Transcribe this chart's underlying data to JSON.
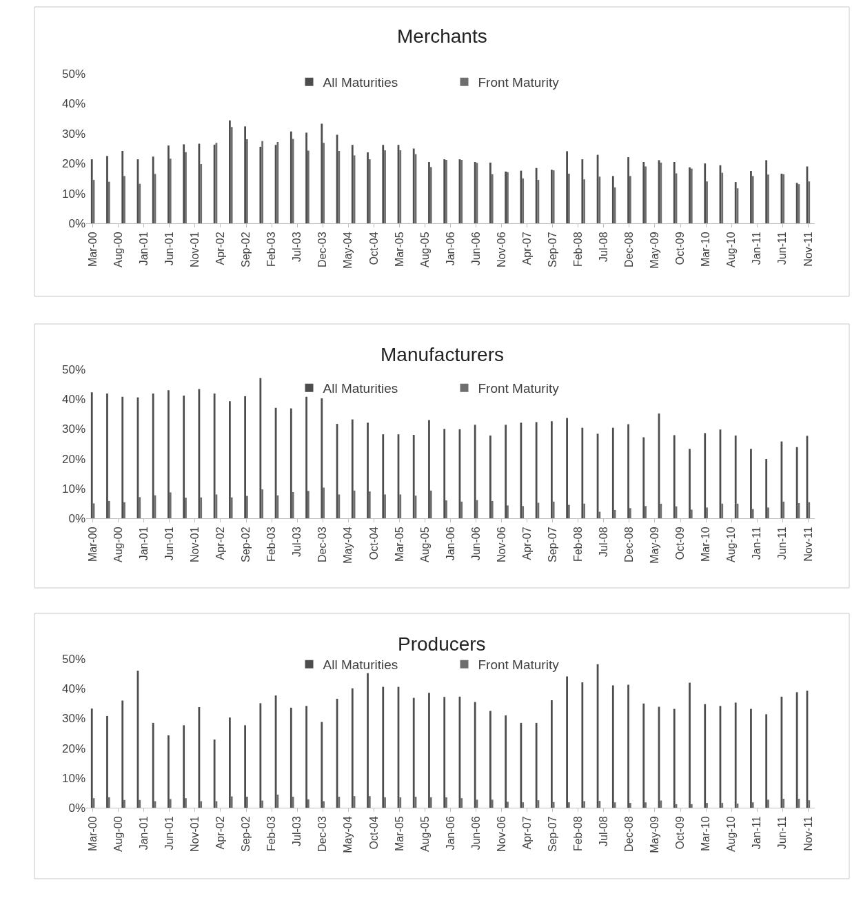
{
  "chart_data": [
    {
      "type": "bar",
      "title": "Merchants",
      "legend": "top",
      "grid": false,
      "categories": [
        "Mar-00",
        null,
        null,
        null,
        null,
        "Aug-00",
        null,
        null,
        null,
        null,
        "Jan-01",
        null,
        null,
        null,
        null,
        "Jun-01",
        null,
        null,
        null,
        null,
        "Nov-01",
        null,
        null,
        null,
        null,
        "Apr-02",
        null,
        null,
        null,
        null,
        "Sep-02",
        null,
        null,
        null,
        null,
        "Feb-03",
        null,
        null,
        null,
        null,
        "Jul-03",
        null,
        null,
        null,
        null,
        "Dec-03",
        null,
        null,
        null,
        null,
        "May-04",
        null,
        null,
        null,
        null,
        "Oct-04",
        null,
        null,
        null,
        null,
        "Mar-05",
        null,
        null,
        null,
        null,
        "Aug-05",
        null,
        null,
        null,
        null,
        "Jan-06",
        null,
        null,
        null,
        null,
        "Jun-06",
        null,
        null,
        null,
        null,
        "Nov-06",
        null,
        null,
        null,
        null,
        "Apr-07",
        null,
        null,
        null,
        null,
        "Sep-07",
        null,
        null,
        null,
        null,
        "Feb-08",
        null,
        null,
        null,
        null,
        "Jul-08",
        null,
        null,
        null,
        null,
        "Dec-08",
        null,
        null,
        null,
        null,
        "May-09",
        null,
        null,
        null,
        null,
        "Oct-09",
        null,
        null,
        null,
        null,
        "Mar-10",
        null,
        null,
        null,
        null,
        "Aug-10",
        null,
        null,
        null,
        null,
        "Jan-11",
        null,
        null,
        null,
        null,
        "Jun-11",
        null,
        null,
        null,
        null,
        "Nov-11"
      ],
      "ylim": [
        0,
        50
      ],
      "yticks": [
        {
          "value": 0,
          "label": "0%"
        },
        {
          "value": 10,
          "label": "10%"
        },
        {
          "value": 20,
          "label": "20%"
        },
        {
          "value": 30,
          "label": "30%"
        },
        {
          "value": 40,
          "label": "40%"
        },
        {
          "value": 50,
          "label": "50%"
        }
      ],
      "series": [
        {
          "name": "All Maturities",
          "color": "#4d4d4d",
          "values": [
            21.4,
            null,
            null,
            22.5,
            null,
            null,
            24.2,
            null,
            null,
            21.4,
            null,
            null,
            22.3,
            null,
            null,
            26.0,
            null,
            null,
            26.4,
            null,
            null,
            26.6,
            null,
            null,
            26.3,
            null,
            null,
            34.4,
            null,
            null,
            32.4,
            null,
            null,
            25.6,
            null,
            null,
            26.2,
            null,
            null,
            30.7,
            null,
            null,
            30.3,
            null,
            null,
            33.3,
            null,
            null,
            29.6,
            null,
            null,
            26.2,
            null,
            null,
            23.7,
            null,
            null,
            26.2,
            null,
            null,
            26.2,
            null,
            null,
            25.0,
            null,
            null,
            20.5,
            null,
            null,
            21.4,
            null,
            null,
            21.4,
            null,
            null,
            20.5,
            null,
            null,
            20.3,
            null,
            null,
            17.3,
            null,
            null,
            17.6,
            null,
            null,
            18.5,
            null,
            null,
            17.9,
            null,
            null,
            24.1,
            null,
            null,
            21.4,
            null,
            null,
            22.9,
            null,
            null,
            15.8,
            null,
            null,
            22.1,
            null,
            null,
            20.5,
            null,
            null,
            21.1,
            null,
            null,
            20.5,
            null,
            null,
            18.7,
            null,
            null,
            20.0,
            null,
            null,
            19.4,
            null,
            null,
            13.8,
            null,
            null,
            17.5,
            null,
            null,
            21.1,
            null,
            null,
            16.6,
            null,
            null,
            13.5,
            null,
            19.0
          ]
        },
        {
          "name": "Front Maturity",
          "color": "#6e6e6e",
          "values": [
            14.5,
            null,
            null,
            13.9,
            null,
            null,
            15.8,
            null,
            null,
            13.2,
            null,
            null,
            16.5,
            null,
            null,
            21.6,
            null,
            null,
            23.8,
            null,
            null,
            19.8,
            null,
            null,
            26.9,
            null,
            null,
            32.2,
            null,
            null,
            28.1,
            null,
            null,
            27.5,
            null,
            null,
            27.2,
            null,
            null,
            28.2,
            null,
            null,
            24.3,
            null,
            null,
            26.9,
            null,
            null,
            24.2,
            null,
            null,
            22.7,
            null,
            null,
            21.4,
            null,
            null,
            24.4,
            null,
            null,
            24.4,
            null,
            null,
            23.1,
            null,
            null,
            18.8,
            null,
            null,
            21.2,
            null,
            null,
            21.2,
            null,
            null,
            20.2,
            null,
            null,
            16.4,
            null,
            null,
            17.1,
            null,
            null,
            15.0,
            null,
            null,
            14.5,
            null,
            null,
            17.7,
            null,
            null,
            16.6,
            null,
            null,
            14.7,
            null,
            null,
            15.6,
            null,
            null,
            12.0,
            null,
            null,
            15.8,
            null,
            null,
            19.0,
            null,
            null,
            20.3,
            null,
            null,
            16.7,
            null,
            null,
            18.3,
            null,
            null,
            14.0,
            null,
            null,
            16.9,
            null,
            null,
            11.7,
            null,
            null,
            15.8,
            null,
            null,
            16.3,
            null,
            null,
            16.4,
            null,
            null,
            13.1,
            null,
            14.0
          ]
        }
      ]
    },
    {
      "type": "bar",
      "title": "Manufacturers",
      "legend": "top",
      "grid": false,
      "categories": [
        "Mar-00",
        null,
        null,
        null,
        null,
        "Aug-00",
        null,
        null,
        null,
        null,
        "Jan-01",
        null,
        null,
        null,
        null,
        "Jun-01",
        null,
        null,
        null,
        null,
        "Nov-01",
        null,
        null,
        null,
        null,
        "Apr-02",
        null,
        null,
        null,
        null,
        "Sep-02",
        null,
        null,
        null,
        null,
        "Feb-03",
        null,
        null,
        null,
        null,
        "Jul-03",
        null,
        null,
        null,
        null,
        "Dec-03",
        null,
        null,
        null,
        null,
        "May-04",
        null,
        null,
        null,
        null,
        "Oct-04",
        null,
        null,
        null,
        null,
        "Mar-05",
        null,
        null,
        null,
        null,
        "Aug-05",
        null,
        null,
        null,
        null,
        "Jan-06",
        null,
        null,
        null,
        null,
        "Jun-06",
        null,
        null,
        null,
        null,
        "Nov-06",
        null,
        null,
        null,
        null,
        "Apr-07",
        null,
        null,
        null,
        null,
        "Sep-07",
        null,
        null,
        null,
        null,
        "Feb-08",
        null,
        null,
        null,
        null,
        "Jul-08",
        null,
        null,
        null,
        null,
        "Dec-08",
        null,
        null,
        null,
        null,
        "May-09",
        null,
        null,
        null,
        null,
        "Oct-09",
        null,
        null,
        null,
        null,
        "Mar-10",
        null,
        null,
        null,
        null,
        "Aug-10",
        null,
        null,
        null,
        null,
        "Jan-11",
        null,
        null,
        null,
        null,
        "Jun-11",
        null,
        null,
        null,
        null,
        "Nov-11"
      ],
      "ylim": [
        0,
        50
      ],
      "yticks": [
        {
          "value": 0,
          "label": "0%"
        },
        {
          "value": 10,
          "label": "10%"
        },
        {
          "value": 20,
          "label": "20%"
        },
        {
          "value": 30,
          "label": "30%"
        },
        {
          "value": 40,
          "label": "40%"
        },
        {
          "value": 50,
          "label": "50%"
        }
      ],
      "series": [
        {
          "name": "All Maturities",
          "color": "#4d4d4d",
          "values": [
            42.3,
            null,
            null,
            41.9,
            null,
            null,
            40.8,
            null,
            null,
            40.6,
            null,
            null,
            41.9,
            null,
            null,
            43.0,
            null,
            null,
            41.2,
            null,
            null,
            43.4,
            null,
            null,
            41.9,
            null,
            null,
            39.3,
            null,
            null,
            41.0,
            null,
            null,
            47.1,
            null,
            null,
            37.1,
            null,
            null,
            36.9,
            null,
            null,
            40.8,
            null,
            null,
            40.3,
            null,
            null,
            31.7,
            null,
            null,
            33.2,
            null,
            null,
            32.1,
            null,
            null,
            28.2,
            null,
            null,
            28.2,
            null,
            null,
            28.0,
            null,
            null,
            33.0,
            null,
            null,
            30.0,
            null,
            null,
            29.9,
            null,
            null,
            31.4,
            null,
            null,
            27.8,
            null,
            null,
            31.4,
            null,
            null,
            32.1,
            null,
            null,
            32.3,
            null,
            null,
            32.6,
            null,
            null,
            33.7,
            null,
            null,
            30.4,
            null,
            null,
            28.4,
            null,
            null,
            30.4,
            null,
            null,
            31.6,
            null,
            null,
            27.2,
            null,
            null,
            35.2,
            null,
            null,
            27.9,
            null,
            null,
            23.3,
            null,
            null,
            28.6,
            null,
            null,
            29.8,
            null,
            null,
            27.8,
            null,
            null,
            23.3,
            null,
            null,
            19.9,
            null,
            null,
            25.8,
            null,
            null,
            23.9,
            null,
            27.7
          ]
        },
        {
          "name": "Front Maturity",
          "color": "#6e6e6e",
          "values": [
            5.0,
            null,
            null,
            5.8,
            null,
            null,
            5.4,
            null,
            null,
            7.1,
            null,
            null,
            7.7,
            null,
            null,
            8.7,
            null,
            null,
            6.9,
            null,
            null,
            7.0,
            null,
            null,
            8.0,
            null,
            null,
            7.0,
            null,
            null,
            7.5,
            null,
            null,
            9.7,
            null,
            null,
            7.7,
            null,
            null,
            8.8,
            null,
            null,
            9.2,
            null,
            null,
            10.3,
            null,
            null,
            8.0,
            null,
            null,
            9.3,
            null,
            null,
            9.0,
            null,
            null,
            8.0,
            null,
            null,
            8.0,
            null,
            null,
            7.6,
            null,
            null,
            9.3,
            null,
            null,
            6.0,
            null,
            null,
            5.6,
            null,
            null,
            6.1,
            null,
            null,
            5.8,
            null,
            null,
            4.3,
            null,
            null,
            4.1,
            null,
            null,
            5.2,
            null,
            null,
            5.6,
            null,
            null,
            4.5,
            null,
            null,
            4.9,
            null,
            null,
            2.2,
            null,
            null,
            2.8,
            null,
            null,
            3.4,
            null,
            null,
            4.1,
            null,
            null,
            4.9,
            null,
            null,
            4.0,
            null,
            null,
            2.9,
            null,
            null,
            3.6,
            null,
            null,
            4.9,
            null,
            null,
            4.9,
            null,
            null,
            3.1,
            null,
            null,
            3.6,
            null,
            null,
            5.6,
            null,
            null,
            5.1,
            null,
            5.4
          ]
        }
      ]
    },
    {
      "type": "bar",
      "title": "Producers",
      "legend": "top",
      "grid": false,
      "categories": [
        "Mar-00",
        null,
        null,
        null,
        null,
        "Aug-00",
        null,
        null,
        null,
        null,
        "Jan-01",
        null,
        null,
        null,
        null,
        "Jun-01",
        null,
        null,
        null,
        null,
        "Nov-01",
        null,
        null,
        null,
        null,
        "Apr-02",
        null,
        null,
        null,
        null,
        "Sep-02",
        null,
        null,
        null,
        null,
        "Feb-03",
        null,
        null,
        null,
        null,
        "Jul-03",
        null,
        null,
        null,
        null,
        "Dec-03",
        null,
        null,
        null,
        null,
        "May-04",
        null,
        null,
        null,
        null,
        "Oct-04",
        null,
        null,
        null,
        null,
        "Mar-05",
        null,
        null,
        null,
        null,
        "Aug-05",
        null,
        null,
        null,
        null,
        "Jan-06",
        null,
        null,
        null,
        null,
        "Jun-06",
        null,
        null,
        null,
        null,
        "Nov-06",
        null,
        null,
        null,
        null,
        "Apr-07",
        null,
        null,
        null,
        null,
        "Sep-07",
        null,
        null,
        null,
        null,
        "Feb-08",
        null,
        null,
        null,
        null,
        "Jul-08",
        null,
        null,
        null,
        null,
        "Dec-08",
        null,
        null,
        null,
        null,
        "May-09",
        null,
        null,
        null,
        null,
        "Oct-09",
        null,
        null,
        null,
        null,
        "Mar-10",
        null,
        null,
        null,
        null,
        "Aug-10",
        null,
        null,
        null,
        null,
        "Jan-11",
        null,
        null,
        null,
        null,
        "Jun-11",
        null,
        null,
        null,
        null,
        "Nov-11"
      ],
      "ylim": [
        0,
        50
      ],
      "yticks": [
        {
          "value": 0,
          "label": "0%"
        },
        {
          "value": 10,
          "label": "10%"
        },
        {
          "value": 20,
          "label": "20%"
        },
        {
          "value": 30,
          "label": "30%"
        },
        {
          "value": 40,
          "label": "40%"
        },
        {
          "value": 50,
          "label": "50%"
        }
      ],
      "series": [
        {
          "name": "All Maturities",
          "color": "#4d4d4d",
          "values": [
            33.3,
            null,
            null,
            30.8,
            null,
            null,
            36.0,
            null,
            null,
            46.0,
            null,
            null,
            28.5,
            null,
            null,
            24.3,
            null,
            null,
            27.7,
            null,
            null,
            33.8,
            null,
            null,
            22.9,
            null,
            null,
            30.3,
            null,
            null,
            27.7,
            null,
            null,
            35.1,
            null,
            null,
            37.7,
            null,
            null,
            33.6,
            null,
            null,
            34.2,
            null,
            null,
            28.8,
            null,
            null,
            36.6,
            null,
            null,
            40.1,
            null,
            null,
            45.2,
            null,
            null,
            40.6,
            null,
            null,
            40.6,
            null,
            null,
            36.9,
            null,
            null,
            38.6,
            null,
            null,
            37.2,
            null,
            null,
            37.3,
            null,
            null,
            35.5,
            null,
            null,
            32.5,
            null,
            null,
            31.0,
            null,
            null,
            28.5,
            null,
            null,
            28.5,
            null,
            null,
            36.1,
            null,
            null,
            44.1,
            null,
            null,
            42.1,
            null,
            null,
            48.2,
            null,
            null,
            41.1,
            null,
            null,
            41.3,
            null,
            null,
            35.0,
            null,
            null,
            33.9,
            null,
            null,
            33.2,
            null,
            null,
            42.0,
            null,
            null,
            34.8,
            null,
            null,
            34.2,
            null,
            null,
            35.3,
            null,
            null,
            33.2,
            null,
            null,
            31.4,
            null,
            null,
            37.3,
            null,
            null,
            38.8,
            null,
            39.3
          ]
        },
        {
          "name": "Front Maturity",
          "color": "#6e6e6e",
          "values": [
            3.2,
            null,
            null,
            3.5,
            null,
            null,
            2.6,
            null,
            null,
            2.6,
            null,
            null,
            2.2,
            null,
            null,
            2.9,
            null,
            null,
            3.2,
            null,
            null,
            2.2,
            null,
            null,
            2.2,
            null,
            null,
            3.8,
            null,
            null,
            3.7,
            null,
            null,
            2.4,
            null,
            null,
            4.4,
            null,
            null,
            3.7,
            null,
            null,
            2.8,
            null,
            null,
            2.2,
            null,
            null,
            3.7,
            null,
            null,
            3.9,
            null,
            null,
            3.9,
            null,
            null,
            3.5,
            null,
            null,
            3.5,
            null,
            null,
            3.7,
            null,
            null,
            3.5,
            null,
            null,
            3.5,
            null,
            null,
            3.2,
            null,
            null,
            2.7,
            null,
            null,
            2.7,
            null,
            null,
            2.0,
            null,
            null,
            1.8,
            null,
            null,
            2.5,
            null,
            null,
            1.9,
            null,
            null,
            1.8,
            null,
            null,
            2.2,
            null,
            null,
            2.3,
            null,
            null,
            1.8,
            null,
            null,
            1.6,
            null,
            null,
            1.8,
            null,
            null,
            2.4,
            null,
            null,
            1.2,
            null,
            null,
            1.2,
            null,
            null,
            1.6,
            null,
            null,
            1.6,
            null,
            null,
            1.4,
            null,
            null,
            1.8,
            null,
            null,
            2.7,
            null,
            null,
            3.0,
            null,
            null,
            3.0,
            null,
            2.5
          ]
        }
      ]
    }
  ]
}
